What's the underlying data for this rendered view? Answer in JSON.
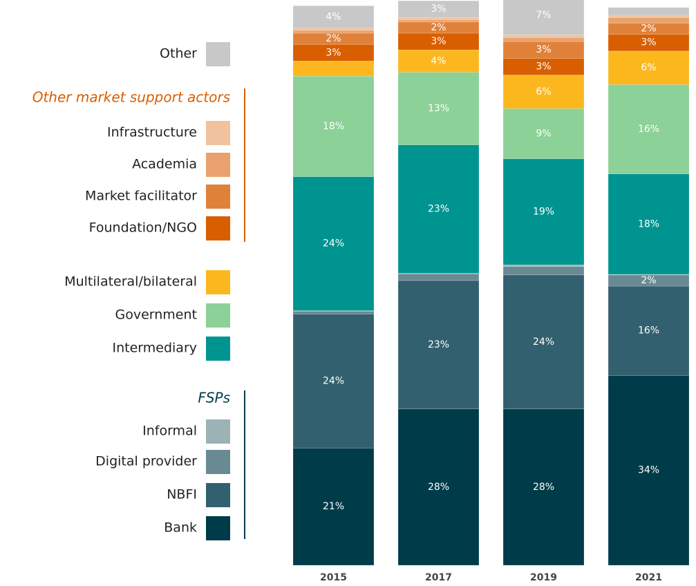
{
  "chart_data": {
    "type": "stacked-bar",
    "categories": [
      "2015",
      "2017",
      "2019",
      "2021"
    ],
    "ylim": [
      0,
      100
    ],
    "legend_groups": [
      {
        "title": "Other market support actors",
        "color": "#d95e00"
      },
      {
        "title": "FSPs",
        "color": "#003b4a"
      }
    ],
    "series": [
      {
        "name": "Bank",
        "color": "#003b4a",
        "values": [
          21,
          28,
          28,
          34
        ],
        "value_labels": [
          "21%",
          "28%",
          "28%",
          "34%"
        ]
      },
      {
        "name": "NBFI",
        "color": "#33606e",
        "values": [
          24,
          23,
          24,
          16
        ],
        "value_labels": [
          "24%",
          "23%",
          "24%",
          "16%"
        ]
      },
      {
        "name": "Digital provider",
        "color": "#6a8a93",
        "values": [
          0.5,
          1.2,
          1.5,
          2
        ],
        "value_labels": [
          null,
          null,
          null,
          "2%"
        ]
      },
      {
        "name": "Informal",
        "color": "#9bb2b7",
        "values": [
          0.1,
          0.1,
          0.3,
          0.1
        ],
        "value_labels": [
          null,
          null,
          null,
          null
        ]
      },
      {
        "name": "Intermediary",
        "color": "#009490",
        "values": [
          24,
          23,
          19,
          18
        ],
        "value_labels": [
          "24%",
          "23%",
          "19%",
          "18%"
        ]
      },
      {
        "name": "Government",
        "color": "#8cd197",
        "values": [
          18,
          13,
          9,
          16
        ],
        "value_labels": [
          "18%",
          "13%",
          "9%",
          "16%"
        ]
      },
      {
        "name": "Multilateral/bilateral",
        "color": "#fdb71e",
        "values": [
          2.7,
          4,
          6,
          6
        ],
        "value_labels": [
          null,
          "4%",
          "6%",
          "6%"
        ]
      },
      {
        "name": "Foundation/NGO",
        "color": "#d95e00",
        "values": [
          3,
          3,
          3,
          3
        ],
        "value_labels": [
          "3%",
          "3%",
          "3%",
          "3%"
        ]
      },
      {
        "name": "Market facilitator",
        "color": "#e0813a",
        "values": [
          2,
          2,
          3,
          2
        ],
        "value_labels": [
          "2%",
          "2%",
          "3%",
          "2%"
        ]
      },
      {
        "name": "Academia",
        "color": "#e9a26d",
        "values": [
          0.5,
          0.4,
          0.7,
          1
        ],
        "value_labels": [
          null,
          null,
          null,
          null
        ]
      },
      {
        "name": "Infrastructure",
        "color": "#f0c29e",
        "values": [
          0.4,
          0.4,
          0.5,
          0.3
        ],
        "value_labels": [
          null,
          null,
          null,
          null
        ]
      },
      {
        "name": "Other",
        "color": "#c8c8c8",
        "values": [
          4,
          3,
          7,
          1.5
        ],
        "value_labels": [
          "4%",
          "3%",
          "7%",
          null
        ]
      }
    ]
  }
}
